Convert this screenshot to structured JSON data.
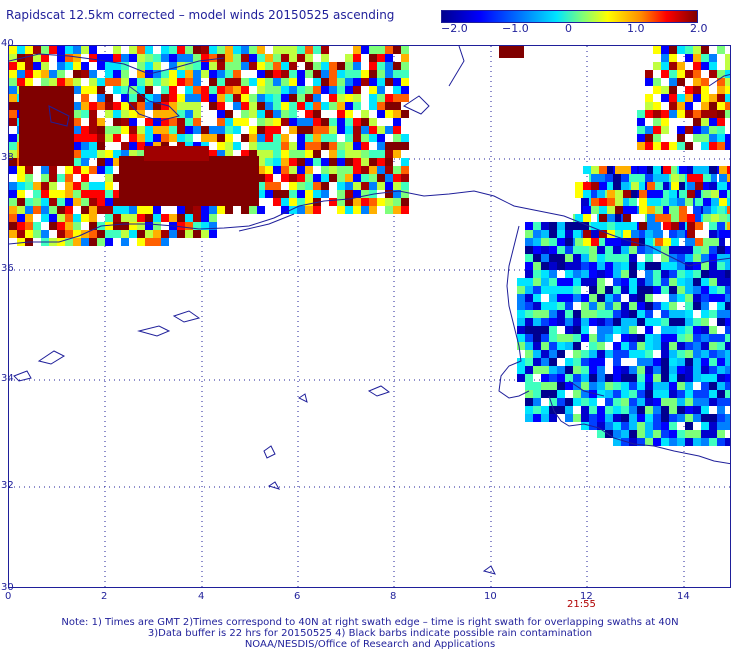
{
  "title": "Rapidscat 12.5km corrected – model winds 20150525 ascending",
  "colorbar": {
    "labels": [
      "−2.0",
      "−1.0",
      "0",
      "1.0",
      "2.0"
    ]
  },
  "axes": {
    "y_labels": [
      "40",
      "38",
      "36",
      "34",
      "32",
      "30"
    ],
    "x_labels": [
      "0",
      "2",
      "4",
      "6",
      "8",
      "10",
      "12",
      "14"
    ],
    "x_origin": "0"
  },
  "swath_time": "21:55",
  "notes": [
    "Note: 1) Times are GMT 2)Times correspond to 40N at right swath edge – time is right swath for overlapping swaths at 40N",
    "3)Data buffer is 22 hrs for 20150525 4) Black barbs indicate possible rain contamination",
    "NOAA/NESDIS/Office of Research and Applications"
  ],
  "colors": {
    "frame": "#1f1f9a",
    "coastline": "#1f1f9a",
    "grid": "#1f1f9a",
    "time_label": "#b00000"
  }
}
